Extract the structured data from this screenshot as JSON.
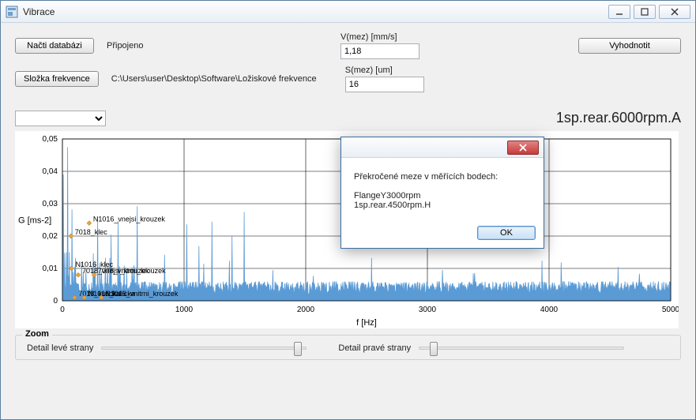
{
  "window": {
    "title": "Vibrace"
  },
  "buttons": {
    "load_db": "Načti databázi",
    "freq_folder": "Složka frekvence",
    "evaluate": "Vyhodnotit"
  },
  "labels": {
    "connected": "Připojeno",
    "path": "C:\\Users\\user\\Desktop\\Software\\Ložiskové frekvence",
    "vmez": "V(mez) [mm/s]",
    "smez": "S(mez) [um]",
    "big": "1sp.rear.6000rpm.A",
    "zoom_legend": "Zoom",
    "detail_left": "Detail levé strany",
    "detail_right": "Detail pravé strany"
  },
  "inputs": {
    "vmez_value": "1,18",
    "smez_value": "16"
  },
  "chart": {
    "type": "line",
    "ylabel": "G [ms-2]",
    "xlabel": "f [Hz]",
    "xlim": [
      0,
      5000
    ],
    "ylim": [
      0,
      0.05
    ],
    "xticks": [
      0,
      1000,
      2000,
      3000,
      4000,
      5000
    ],
    "yticks": [
      0,
      0.01,
      0.02,
      0.03,
      0.04,
      0.05
    ],
    "ytick_labels": [
      "0",
      "0,01",
      "0,02",
      "0,03",
      "0,04",
      "0,05"
    ],
    "line_color": "#5b9bd5",
    "grid_color": "#000000",
    "background_color": "#ffffff",
    "label_fontsize": 11,
    "tick_fontsize": 10,
    "annotation_color": "#e8a33d",
    "annotations": [
      {
        "label": "N1016_vnejsi_krouzek",
        "x_f": 220,
        "y_g": 0.024
      },
      {
        "label": "7018_klec",
        "x_f": 70,
        "y_g": 0.02
      },
      {
        "label": "N1016_klec",
        "x_f": 75,
        "y_g": 0.01
      },
      {
        "label": "7018_vnejsi_krouzek",
        "x_f": 130,
        "y_g": 0.008
      },
      {
        "label": "7078_vnitrni_krouzek",
        "x_f": 260,
        "y_g": 0.008
      },
      {
        "label": "7018_kulicka",
        "x_f": 100,
        "y_g": 0.001
      },
      {
        "label": "N1016_kulicka",
        "x_f": 180,
        "y_g": 0.001
      },
      {
        "label": "N1016_vnitrni_krouzek",
        "x_f": 320,
        "y_g": 0.001
      }
    ]
  },
  "sliders": {
    "left_pos_pct": 97,
    "right_pos_pct": 5
  },
  "dialog": {
    "message_line1": "Překročené meze v měřících bodech:",
    "message_line2": "FlangeY3000rpm",
    "message_line3": "1sp.rear.4500rpm.H",
    "ok": "OK"
  },
  "colors": {
    "window_border": "#5a7fa0",
    "client_bg": "#f0f0f0"
  }
}
